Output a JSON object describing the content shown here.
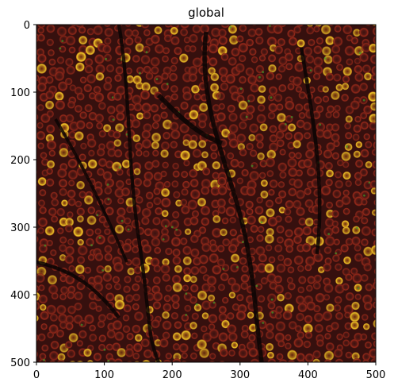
{
  "figure": {
    "title": "global",
    "x_ticks": [
      "0",
      "100",
      "200",
      "300",
      "400",
      "500"
    ],
    "y_ticks": [
      "0",
      "100",
      "200",
      "300",
      "400",
      "500"
    ],
    "x_range": [
      0,
      500
    ],
    "y_range": [
      0,
      500
    ],
    "y_axis_inverted": true,
    "image_description_colors": {
      "background": "#0b0906",
      "tissue": "#4a1410",
      "membrane_red": "#8a2418",
      "hotspot_yellow": "#f2d22a",
      "fiber_green": "#2f7a24"
    }
  }
}
